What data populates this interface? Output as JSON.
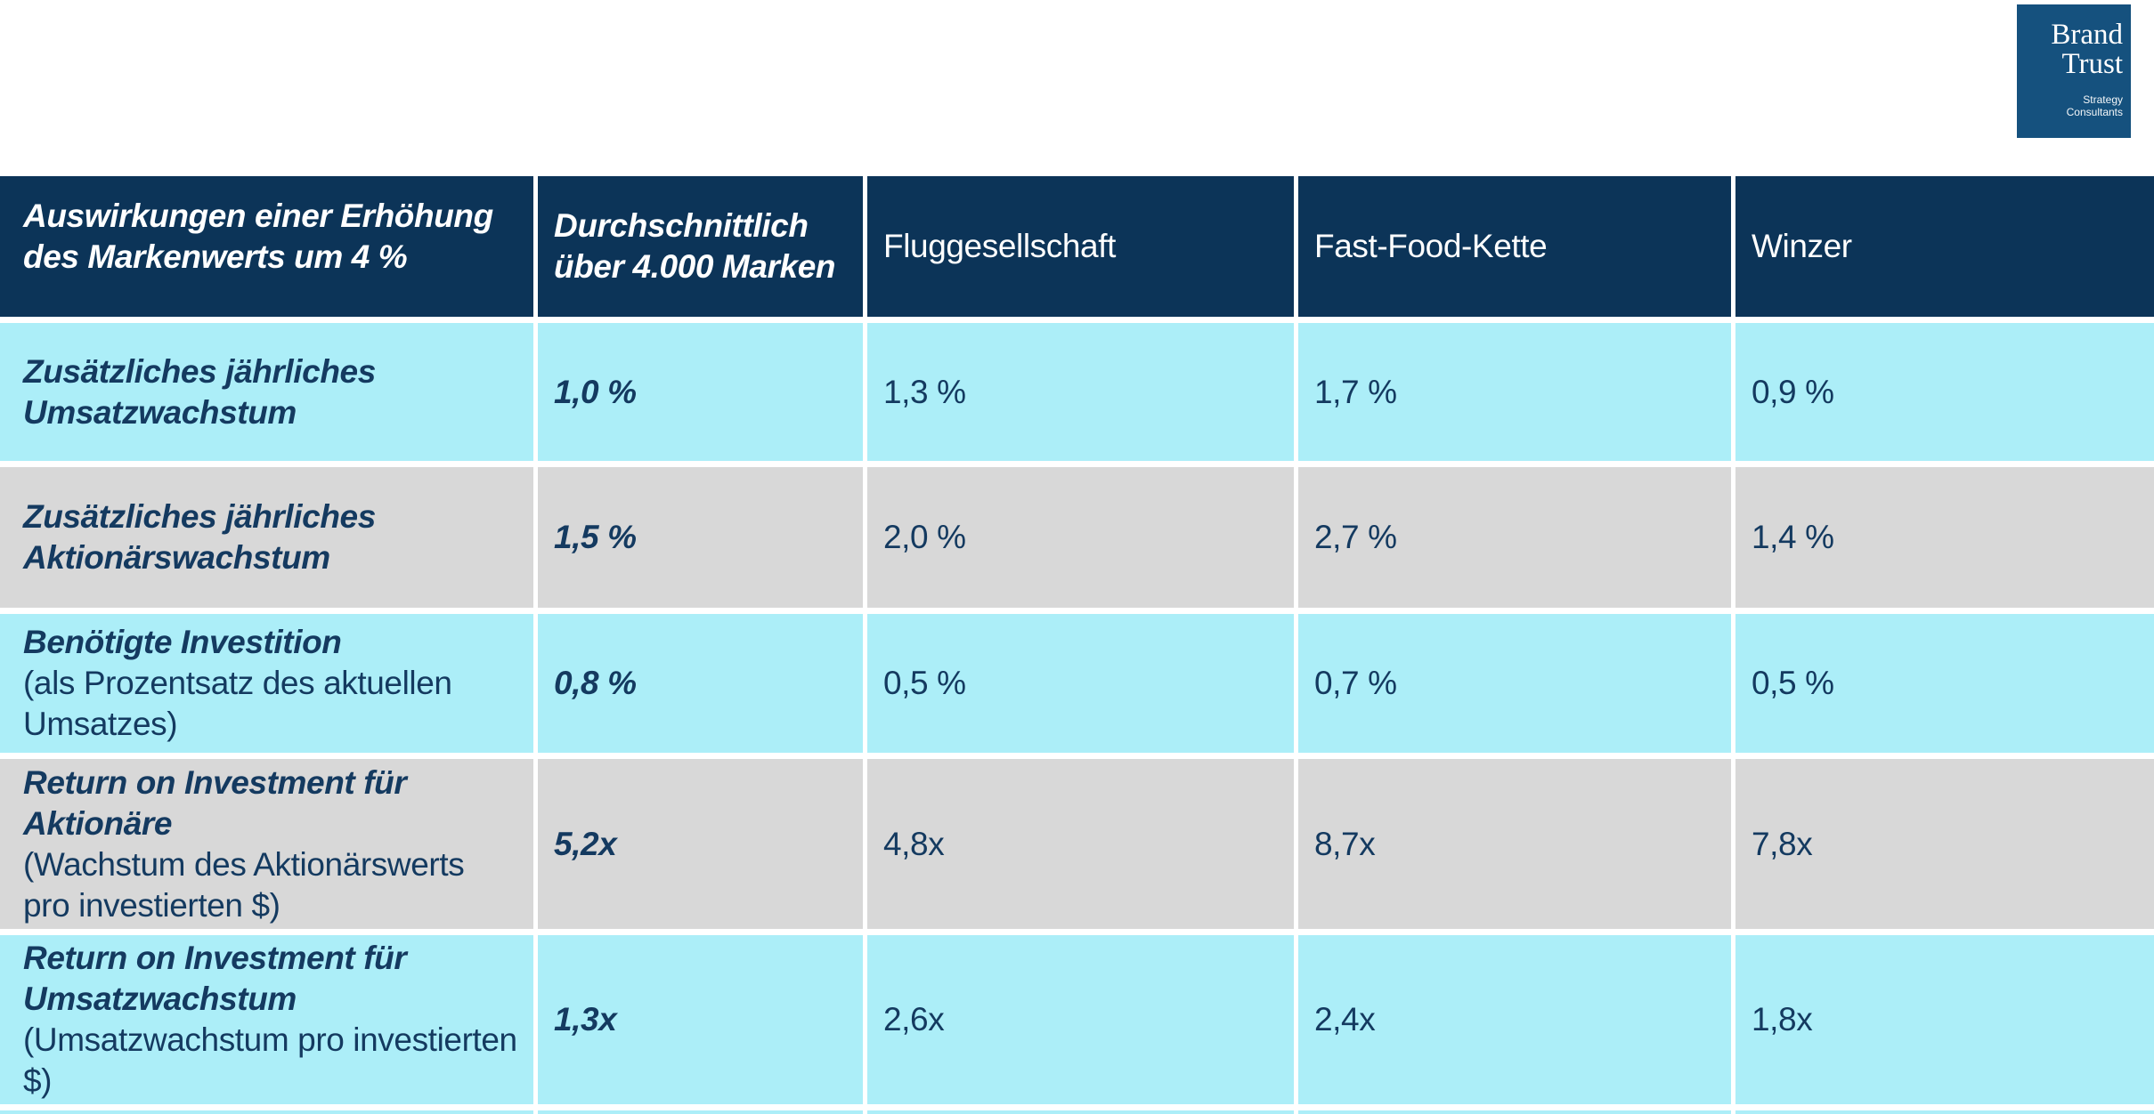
{
  "logo": {
    "line1": "Brand",
    "line2": "Trust",
    "sub_line1": "Strategy",
    "sub_line2": "Consultants"
  },
  "table": {
    "header": {
      "title": "Auswirkungen einer Erhöhung des Markenwerts um 4 %",
      "columns": [
        "Durchschnittlich über 4.000 Marken",
        "Fluggesellschaft",
        "Fast-Food-Kette",
        "Winzer"
      ]
    },
    "rows": [
      {
        "title": "Zusätzliches jährliches Umsatzwachstum",
        "subtitle": "",
        "values": [
          "1,0 %",
          "1,3 %",
          "1,7 %",
          "0,9 %"
        ]
      },
      {
        "title": "Zusätzliches jährliches Aktionärswachstum",
        "subtitle": "",
        "values": [
          "1,5 %",
          "2,0 %",
          "2,7 %",
          "1,4 %"
        ]
      },
      {
        "title": "Benötigte Investition",
        "subtitle": "(als Prozentsatz des aktuellen Umsatzes)",
        "values": [
          "0,8 %",
          "0,5 %",
          "0,7 %",
          "0,5 %"
        ]
      },
      {
        "title": "Return on Investment für Aktionäre",
        "subtitle": "(Wachstum des Aktionärswerts pro investierten $)",
        "values": [
          "5,2x",
          "4,8x",
          "8,7x",
          "7,8x"
        ]
      },
      {
        "title": "Return on Investment für Umsatzwachstum",
        "subtitle": "(Umsatzwachstum pro investierten $)",
        "values": [
          "1,3x",
          "2,6x",
          "2,4x",
          "1,8x"
        ]
      }
    ]
  },
  "colors": {
    "header_navy": "#0C3458",
    "row_cyan": "#ACEEF8",
    "row_gray": "#D8D8D8",
    "text_navy": "#143A60",
    "logo_blue": "#15517E"
  }
}
